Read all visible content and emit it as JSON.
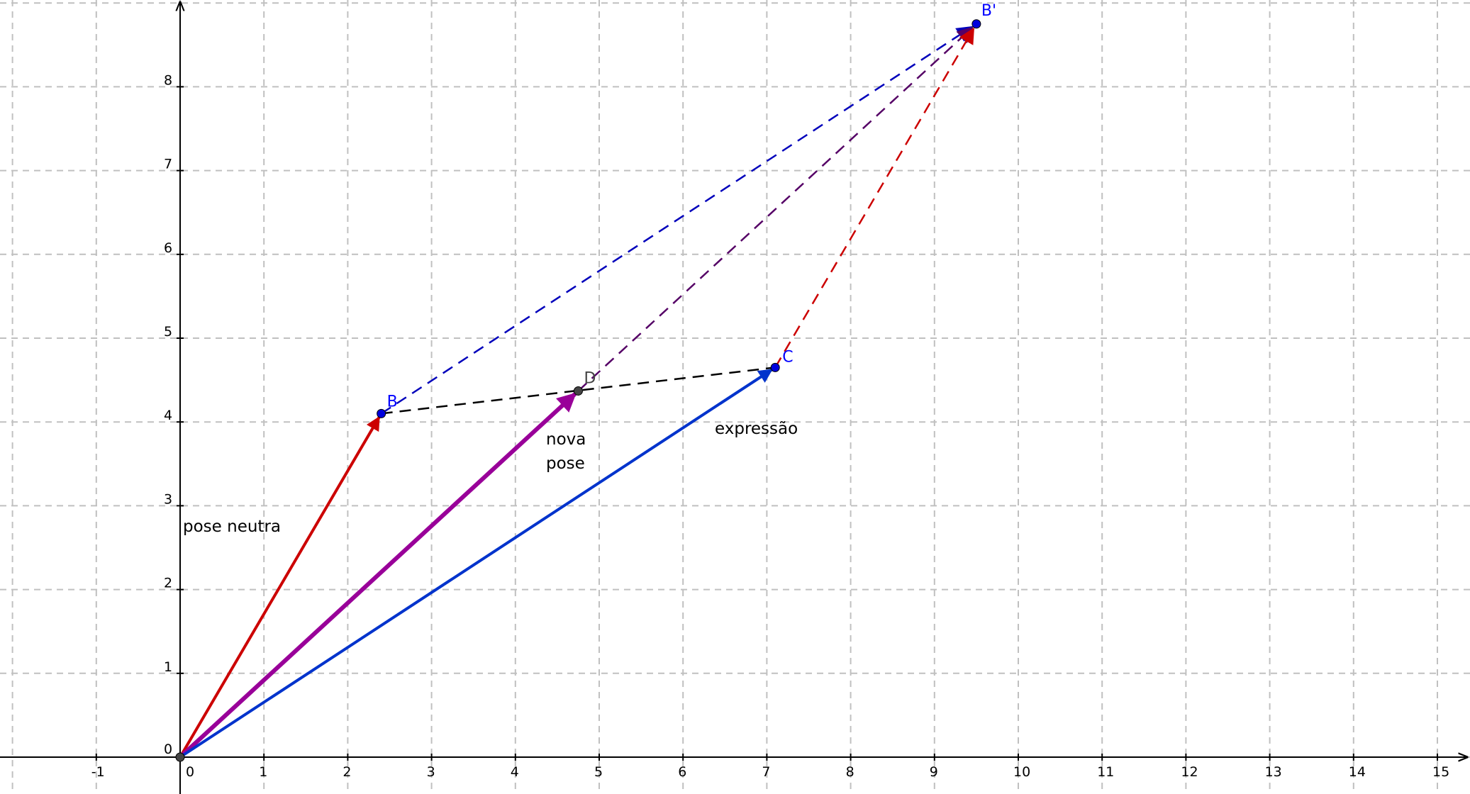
{
  "colors": {
    "background": "#ffffff",
    "grid": "#c0c0c0",
    "axis": "#000000",
    "red": "#cc0000",
    "purple": "#990099",
    "blue": "#0033cc",
    "dash_blue": "#0000bb",
    "dash_purple": "#550066",
    "dash_red": "#cc0000",
    "dash_black": "#000000",
    "point_blue": "#0000dd",
    "point_gray": "#444444",
    "label_blue": "#0000ff",
    "label_gray": "#444444"
  },
  "axes": {
    "x_ticks": [
      "-1",
      "0",
      "1",
      "2",
      "3",
      "4",
      "5",
      "6",
      "7",
      "8",
      "9",
      "10",
      "11",
      "12",
      "13",
      "14",
      "15"
    ],
    "y_ticks": [
      "0",
      "1",
      "2",
      "3",
      "4",
      "5",
      "6",
      "7",
      "8"
    ]
  },
  "points": {
    "O": {
      "x": 0,
      "y": 0
    },
    "B": {
      "label": "B",
      "x": 2.4,
      "y": 4.1
    },
    "C": {
      "label": "C",
      "x": 7.1,
      "y": 4.65
    },
    "D": {
      "label": "D",
      "x": 4.75,
      "y": 4.37
    },
    "B_prime": {
      "label": "B'",
      "x": 9.5,
      "y": 8.75
    }
  },
  "vector_labels": {
    "pose_neutra": "pose neutra",
    "nova_pose_line1": "nova",
    "nova_pose_line2": "pose",
    "expressao": "expressão"
  }
}
